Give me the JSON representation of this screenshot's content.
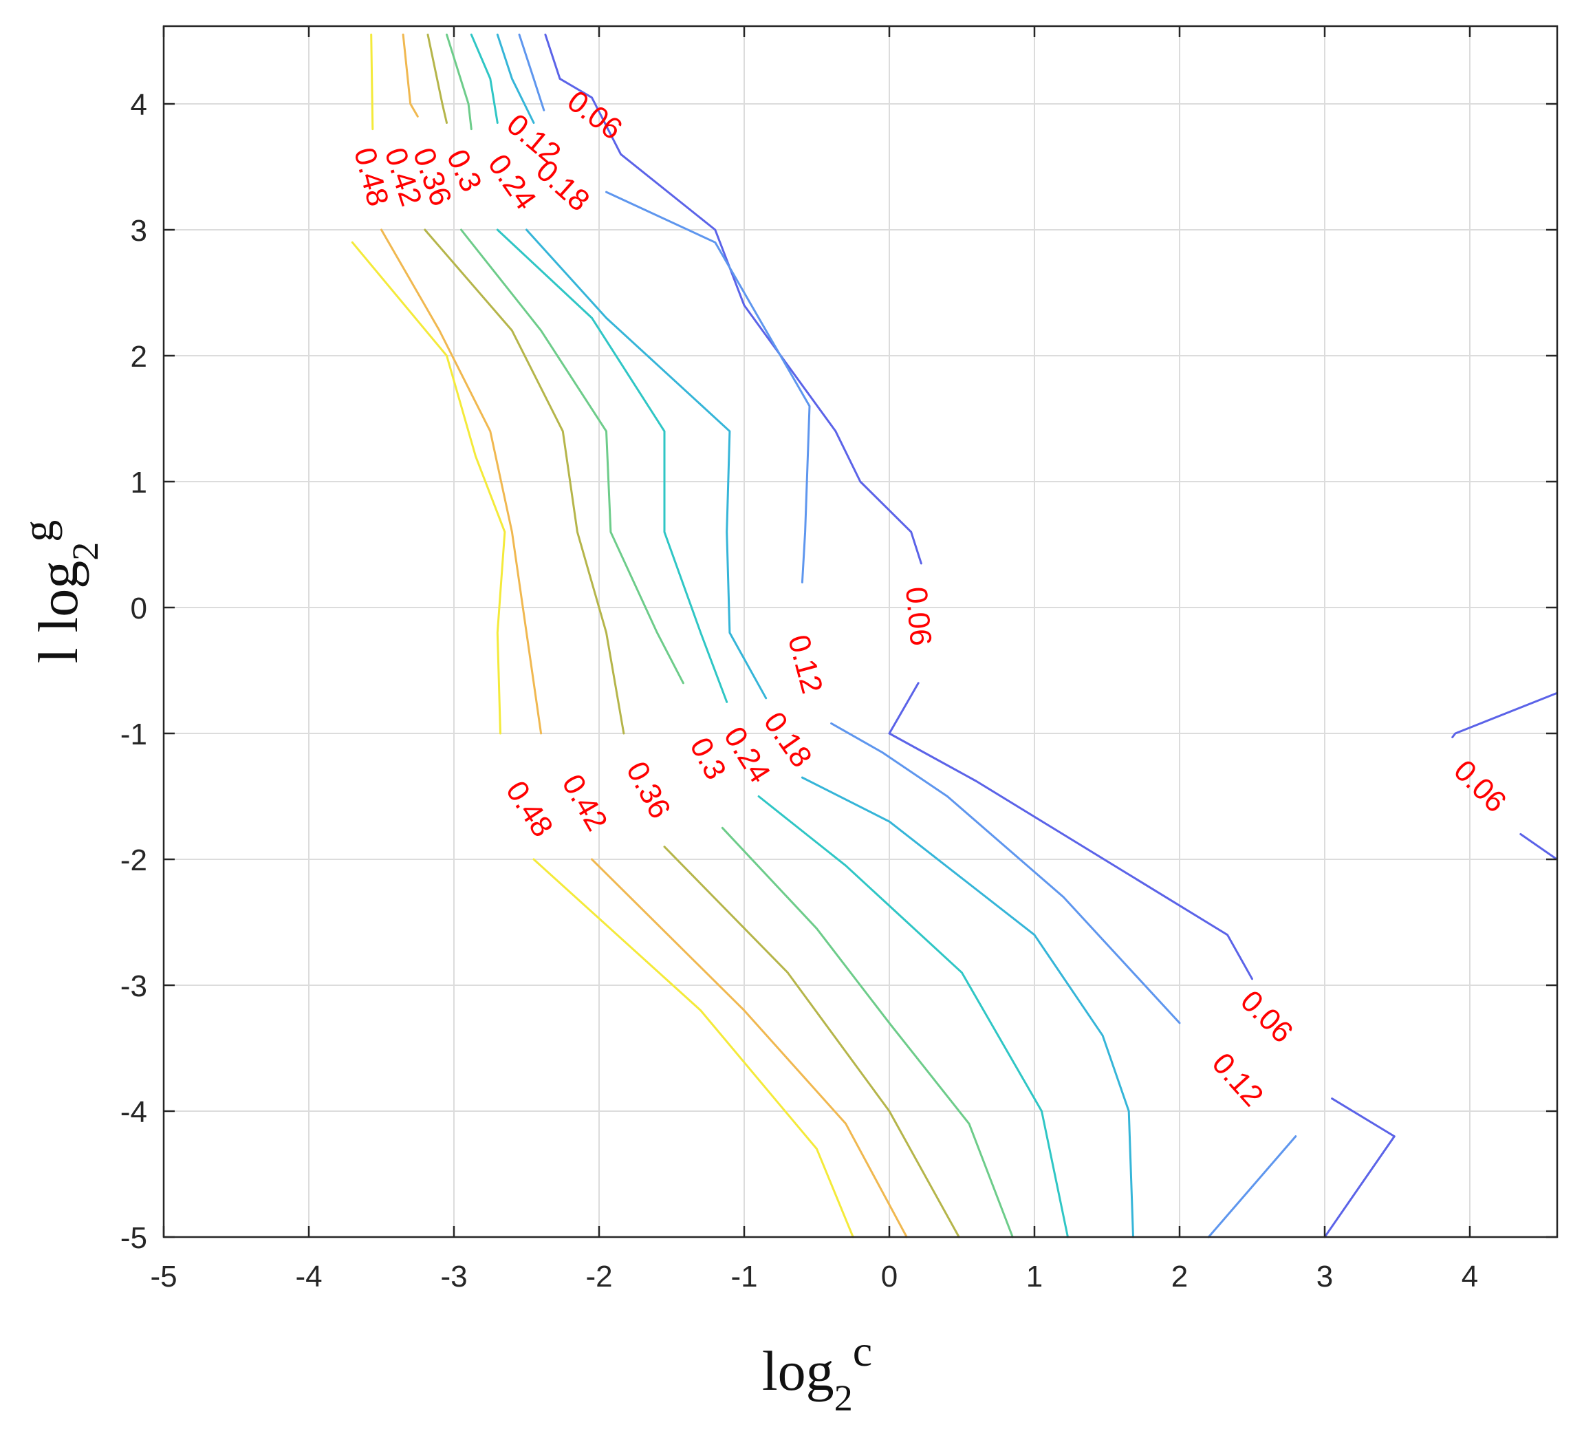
{
  "chart_data": {
    "type": "contour",
    "title": "",
    "xlabel": {
      "base": "log",
      "subscript": "2",
      "superscript": "c"
    },
    "ylabel": {
      "prefix": "l",
      "base": "log",
      "subscript": "2",
      "superscript": "g"
    },
    "xlim": [
      -5,
      4.6
    ],
    "ylim": [
      -5,
      4.55
    ],
    "xticks": [
      -5,
      -4,
      -3,
      -2,
      -1,
      0,
      1,
      2,
      3,
      4
    ],
    "yticks": [
      -5,
      -4,
      -3,
      -2,
      -1,
      0,
      1,
      2,
      3,
      4
    ],
    "xtick_labels": [
      "-5",
      "-4",
      "-3",
      "-2",
      "-1",
      "0",
      "1",
      "2",
      "3",
      "4"
    ],
    "ytick_labels": [
      "-5",
      "-4",
      "-3",
      "-2",
      "-1",
      "0",
      "1",
      "2",
      "3",
      "4"
    ],
    "grid": true,
    "label_color": "#ff0000",
    "levels": [
      {
        "level": 0.06,
        "color": "#5b63e8",
        "paths": [
          [
            [
              -2.37,
              4.55
            ],
            [
              -2.27,
              4.2
            ],
            [
              -2.05,
              4.05
            ],
            [
              -1.85,
              3.6
            ],
            [
              -1.2,
              3.0
            ],
            [
              -1.0,
              2.4
            ],
            [
              -0.37,
              1.4
            ],
            [
              -0.2,
              1.0
            ],
            [
              0.15,
              0.6
            ],
            [
              0.22,
              0.35
            ]
          ],
          [
            [
              0.2,
              -0.6
            ],
            [
              0.0,
              -1.0
            ],
            [
              0.6,
              -1.38
            ],
            [
              2.33,
              -2.6
            ],
            [
              2.5,
              -2.95
            ]
          ],
          [
            [
              3.05,
              -3.9
            ],
            [
              3.48,
              -4.2
            ],
            [
              3.0,
              -5.0
            ]
          ],
          [
            [
              4.6,
              -0.68
            ],
            [
              3.9,
              -1.0
            ],
            [
              3.88,
              -1.03
            ]
          ],
          [
            [
              4.35,
              -1.8
            ],
            [
              4.6,
              -2.0
            ]
          ]
        ]
      },
      {
        "level": 0.12,
        "color": "#5e96ee",
        "paths": [
          [
            [
              -2.55,
              4.55
            ],
            [
              -2.45,
              4.2
            ],
            [
              -2.38,
              3.95
            ]
          ],
          [
            [
              -1.95,
              3.3
            ],
            [
              -1.2,
              2.9
            ],
            [
              -0.55,
              1.6
            ],
            [
              -0.58,
              0.6
            ],
            [
              -0.6,
              0.2
            ]
          ],
          [
            [
              -0.4,
              -0.92
            ],
            [
              -0.05,
              -1.15
            ],
            [
              0.4,
              -1.5
            ],
            [
              1.2,
              -2.3
            ],
            [
              2.0,
              -3.3
            ]
          ],
          [
            [
              2.8,
              -4.2
            ],
            [
              2.2,
              -5.0
            ]
          ]
        ]
      },
      {
        "level": 0.18,
        "color": "#35b5d8",
        "paths": [
          [
            [
              -2.7,
              4.55
            ],
            [
              -2.6,
              4.2
            ],
            [
              -2.45,
              3.85
            ]
          ],
          [
            [
              -2.5,
              3.0
            ],
            [
              -1.95,
              2.3
            ],
            [
              -1.1,
              1.4
            ],
            [
              -1.12,
              0.6
            ],
            [
              -1.1,
              -0.2
            ],
            [
              -0.85,
              -0.72
            ]
          ],
          [
            [
              -0.6,
              -1.35
            ],
            [
              0.0,
              -1.7
            ],
            [
              1.0,
              -2.6
            ],
            [
              1.47,
              -3.4
            ],
            [
              1.65,
              -4.0
            ],
            [
              1.68,
              -5.0
            ]
          ]
        ]
      },
      {
        "level": 0.24,
        "color": "#2fc6c5",
        "paths": [
          [
            [
              -2.88,
              4.55
            ],
            [
              -2.75,
              4.2
            ],
            [
              -2.7,
              3.85
            ]
          ],
          [
            [
              -2.7,
              3.0
            ],
            [
              -2.05,
              2.3
            ],
            [
              -1.55,
              1.4
            ],
            [
              -1.55,
              0.6
            ],
            [
              -1.3,
              -0.2
            ],
            [
              -1.12,
              -0.75
            ]
          ],
          [
            [
              -0.9,
              -1.5
            ],
            [
              -0.3,
              -2.05
            ],
            [
              0.5,
              -2.9
            ],
            [
              1.05,
              -4.0
            ],
            [
              1.23,
              -5.0
            ]
          ]
        ]
      },
      {
        "level": 0.3,
        "color": "#6dcc8a",
        "paths": [
          [
            [
              -3.05,
              4.55
            ],
            [
              -2.9,
              4.0
            ],
            [
              -2.88,
              3.8
            ]
          ],
          [
            [
              -2.95,
              3.0
            ],
            [
              -2.4,
              2.2
            ],
            [
              -1.95,
              1.4
            ],
            [
              -1.92,
              0.6
            ],
            [
              -1.6,
              -0.2
            ],
            [
              -1.42,
              -0.6
            ]
          ],
          [
            [
              -1.15,
              -1.75
            ],
            [
              -0.5,
              -2.55
            ],
            [
              0.0,
              -3.3
            ],
            [
              0.55,
              -4.1
            ],
            [
              0.85,
              -5.0
            ]
          ]
        ]
      },
      {
        "level": 0.36,
        "color": "#b5b54a",
        "paths": [
          [
            [
              -3.18,
              4.55
            ],
            [
              -3.08,
              4.0
            ],
            [
              -3.05,
              3.85
            ]
          ],
          [
            [
              -3.2,
              3.0
            ],
            [
              -2.6,
              2.2
            ],
            [
              -2.25,
              1.4
            ],
            [
              -2.15,
              0.6
            ],
            [
              -1.95,
              -0.2
            ],
            [
              -1.83,
              -1.0
            ]
          ],
          [
            [
              -1.55,
              -1.9
            ],
            [
              -0.7,
              -2.9
            ],
            [
              0.0,
              -4.0
            ],
            [
              0.48,
              -5.0
            ]
          ]
        ]
      },
      {
        "level": 0.42,
        "color": "#f0b850",
        "paths": [
          [
            [
              -3.35,
              4.55
            ],
            [
              -3.3,
              4.0
            ],
            [
              -3.25,
              3.9
            ]
          ],
          [
            [
              -3.5,
              3.0
            ],
            [
              -3.1,
              2.2
            ],
            [
              -2.75,
              1.4
            ],
            [
              -2.6,
              0.6
            ],
            [
              -2.5,
              -0.2
            ],
            [
              -2.4,
              -1.0
            ]
          ],
          [
            [
              -2.05,
              -2.0
            ],
            [
              -1.0,
              -3.2
            ],
            [
              -0.3,
              -4.1
            ],
            [
              0.12,
              -5.0
            ]
          ]
        ]
      },
      {
        "level": 0.48,
        "color": "#f4ea3a",
        "paths": [
          [
            [
              -3.57,
              4.55
            ],
            [
              -3.56,
              3.8
            ]
          ],
          [
            [
              -3.7,
              2.9
            ],
            [
              -3.05,
              2.0
            ],
            [
              -2.85,
              1.2
            ],
            [
              -2.65,
              0.6
            ],
            [
              -2.7,
              -0.2
            ],
            [
              -2.68,
              -1.0
            ]
          ],
          [
            [
              -2.45,
              -2.0
            ],
            [
              -1.3,
              -3.2
            ],
            [
              -0.5,
              -4.3
            ],
            [
              -0.25,
              -5.0
            ]
          ]
        ]
      }
    ],
    "labels": [
      {
        "text": "0.06",
        "x": -2.03,
        "y": 3.91,
        "angle": 37
      },
      {
        "text": "0.12",
        "x": -2.45,
        "y": 3.72,
        "angle": 40
      },
      {
        "text": "0.18",
        "x": -2.25,
        "y": 3.35,
        "angle": 42
      },
      {
        "text": "0.24",
        "x": -2.6,
        "y": 3.38,
        "angle": 55
      },
      {
        "text": "0.3",
        "x": -2.93,
        "y": 3.47,
        "angle": 65
      },
      {
        "text": "0.36",
        "x": -3.15,
        "y": 3.42,
        "angle": 70
      },
      {
        "text": "0.42",
        "x": -3.35,
        "y": 3.42,
        "angle": 72
      },
      {
        "text": "0.48",
        "x": -3.57,
        "y": 3.42,
        "angle": 75
      },
      {
        "text": "0.06",
        "x": 0.2,
        "y": -0.07,
        "angle": 85
      },
      {
        "text": "0.12",
        "x": -0.58,
        "y": -0.45,
        "angle": 75
      },
      {
        "text": "0.18",
        "x": -0.7,
        "y": -1.05,
        "angle": 55
      },
      {
        "text": "0.24",
        "x": -0.98,
        "y": -1.17,
        "angle": 58
      },
      {
        "text": "0.3",
        "x": -1.25,
        "y": -1.2,
        "angle": 62
      },
      {
        "text": "0.36",
        "x": -1.66,
        "y": -1.45,
        "angle": 62
      },
      {
        "text": "0.42",
        "x": -2.1,
        "y": -1.55,
        "angle": 60
      },
      {
        "text": "0.48",
        "x": -2.48,
        "y": -1.6,
        "angle": 57
      },
      {
        "text": "0.06",
        "x": 2.6,
        "y": -3.25,
        "angle": 45
      },
      {
        "text": "0.12",
        "x": 2.4,
        "y": -3.75,
        "angle": 48
      },
      {
        "text": "0.06",
        "x": 4.07,
        "y": -1.42,
        "angle": 45
      }
    ]
  }
}
